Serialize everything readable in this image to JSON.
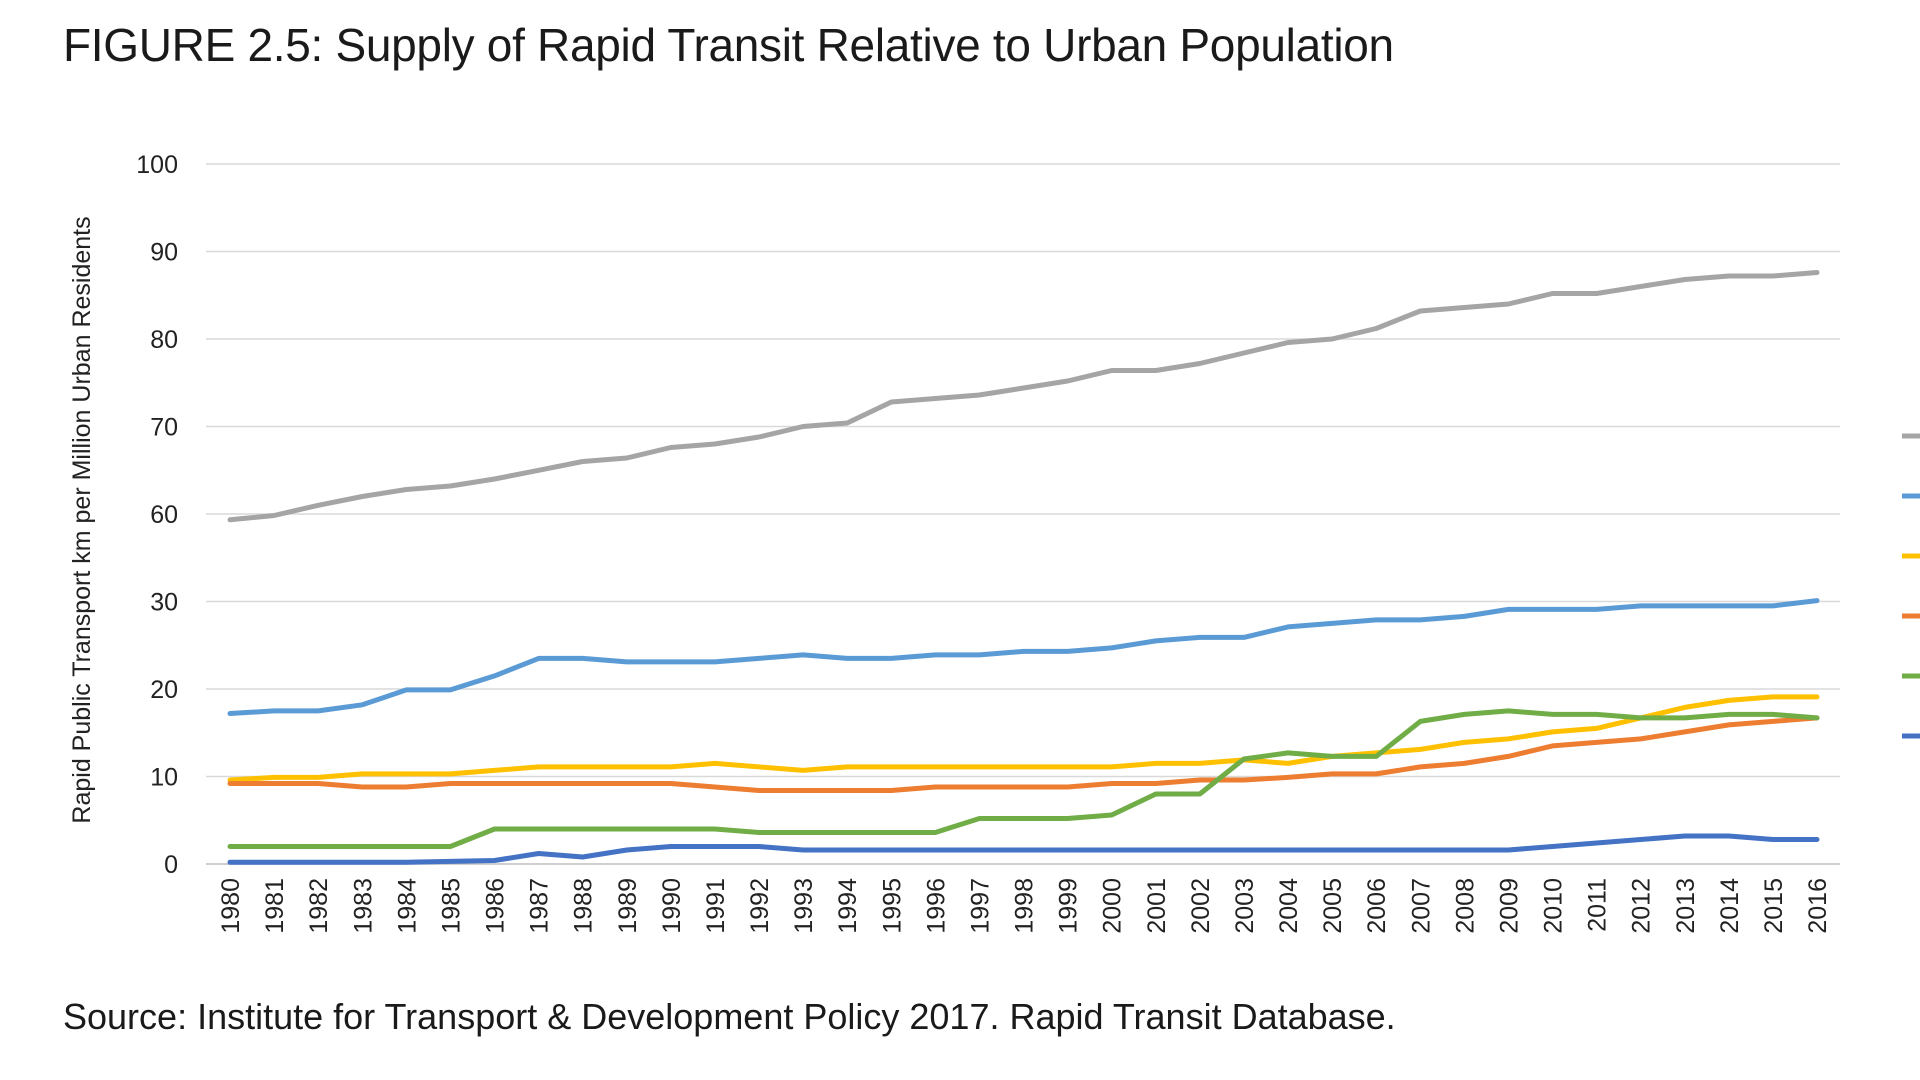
{
  "figure": {
    "title": "FIGURE 2.5: Supply of Rapid Transit Relative to Urban Population",
    "source": "Source: Institute for Transport & Development Policy 2017. Rapid Transit Database."
  },
  "chart_data": {
    "type": "line",
    "title": "FIGURE 2.5: Supply of Rapid Transit Relative to Urban Population",
    "xlabel": "",
    "ylabel": "Rapid Public Transport km per Million Urban Residents",
    "y_ticks": [
      0,
      10,
      20,
      30,
      60,
      70,
      80,
      90,
      100
    ],
    "ylim": [
      0,
      100
    ],
    "grid": true,
    "legend_position": "right (labels cut off)",
    "x": [
      "1980",
      "1981",
      "1982",
      "1983",
      "1984",
      "1985",
      "1986",
      "1987",
      "1988",
      "1989",
      "1990",
      "1991",
      "1992",
      "1993",
      "1994",
      "1995",
      "1996",
      "1997",
      "1998",
      "1999",
      "2000",
      "2001",
      "2002",
      "2003",
      "2004",
      "2005",
      "2006",
      "2007",
      "2008",
      "2009",
      "2010",
      "2011",
      "2012",
      "2013",
      "2014",
      "2015",
      "2016"
    ],
    "series": [
      {
        "color": "#a5a5a5",
        "values": [
          58,
          59.5,
          61,
          62,
          62.8,
          63.2,
          64,
          65,
          66,
          66.4,
          67.6,
          68,
          68.8,
          70,
          70.4,
          72.8,
          73.2,
          73.6,
          74.4,
          75.2,
          76.4,
          76.4,
          77.2,
          78.4,
          79.6,
          80,
          81.2,
          83.2,
          83.6,
          84,
          85.2,
          85.2,
          86,
          86.8,
          87.2,
          87.2,
          87.6
        ]
      },
      {
        "color": "#5b9bd5",
        "values": [
          17.2,
          17.5,
          17.5,
          18.2,
          19.9,
          19.9,
          21.5,
          23.5,
          23.5,
          23.1,
          23.1,
          23.1,
          23.5,
          23.9,
          23.5,
          23.5,
          23.9,
          23.9,
          24.3,
          24.3,
          24.7,
          25.5,
          25.9,
          25.9,
          27.1,
          27.5,
          27.9,
          27.9,
          28.3,
          29.1,
          29.1,
          29.1,
          29.5,
          29.5,
          29.5,
          29.5,
          30.3
        ]
      },
      {
        "color": "#ffc000",
        "values": [
          9.6,
          9.9,
          9.9,
          10.3,
          10.3,
          10.3,
          10.7,
          11.1,
          11.1,
          11.1,
          11.1,
          11.5,
          11.1,
          10.7,
          11.1,
          11.1,
          11.1,
          11.1,
          11.1,
          11.1,
          11.1,
          11.5,
          11.5,
          11.9,
          11.5,
          12.3,
          12.7,
          13.1,
          13.9,
          14.3,
          15.1,
          15.5,
          16.7,
          17.9,
          18.7,
          19.1,
          19.1
        ]
      },
      {
        "color": "#ed7d31",
        "values": [
          9.2,
          9.2,
          9.2,
          8.8,
          8.8,
          9.2,
          9.2,
          9.2,
          9.2,
          9.2,
          9.2,
          8.8,
          8.4,
          8.4,
          8.4,
          8.4,
          8.8,
          8.8,
          8.8,
          8.8,
          9.2,
          9.2,
          9.6,
          9.6,
          9.9,
          10.3,
          10.3,
          11.1,
          11.5,
          12.3,
          13.5,
          13.9,
          14.3,
          15.1,
          15.9,
          16.3,
          16.7
        ]
      },
      {
        "color": "#70ad47",
        "values": [
          2,
          2,
          2,
          2,
          2,
          2,
          4,
          4,
          4,
          4,
          4,
          4,
          3.6,
          3.6,
          3.6,
          3.6,
          3.6,
          5.2,
          5.2,
          5.2,
          5.6,
          8,
          8,
          12,
          12.7,
          12.3,
          12.3,
          16.3,
          17.1,
          17.5,
          17.1,
          17.1,
          16.7,
          16.7,
          17.1,
          17.1,
          16.7
        ]
      },
      {
        "color": "#4472c4",
        "values": [
          0.2,
          0.2,
          0.2,
          0.2,
          0.2,
          0.3,
          0.4,
          1.2,
          0.8,
          1.6,
          2,
          2,
          2,
          1.6,
          1.6,
          1.6,
          1.6,
          1.6,
          1.6,
          1.6,
          1.6,
          1.6,
          1.6,
          1.6,
          1.6,
          1.6,
          1.6,
          1.6,
          1.6,
          1.6,
          2,
          2.4,
          2.8,
          3.2,
          3.2,
          2.8,
          2.8
        ]
      }
    ]
  }
}
